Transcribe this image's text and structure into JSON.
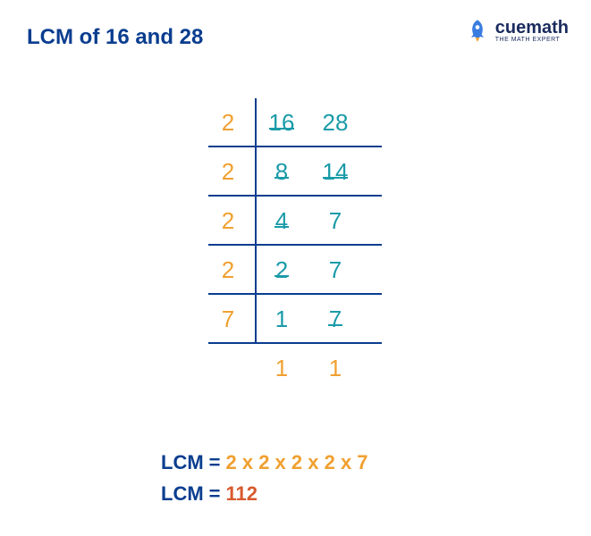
{
  "title": "LCM of 16 and 28",
  "title_color": "#0a3d8f",
  "logo": {
    "brand": "cuemath",
    "tagline": "THE MATH EXPERT",
    "rocket_color": "#3a7de0"
  },
  "colors": {
    "orange": "#f0a030",
    "teal": "#1a9ba8",
    "navy": "#0a3d8f",
    "red_orange": "#d85a2e",
    "line": "#0a3d8f"
  },
  "division": {
    "rows": [
      {
        "divisor": "2",
        "nums": [
          {
            "v": "16",
            "u": true
          },
          {
            "v": "28",
            "u": false
          }
        ],
        "hline": true,
        "divisor_color": "#f0a030",
        "num_color": "#1a9ba8"
      },
      {
        "divisor": "2",
        "nums": [
          {
            "v": "8",
            "u": true
          },
          {
            "v": "14",
            "u": true
          }
        ],
        "hline": true,
        "divisor_color": "#f0a030",
        "num_color": "#1a9ba8"
      },
      {
        "divisor": "2",
        "nums": [
          {
            "v": "4",
            "u": true
          },
          {
            "v": "7",
            "u": false
          }
        ],
        "hline": true,
        "divisor_color": "#f0a030",
        "num_color": "#1a9ba8"
      },
      {
        "divisor": "2",
        "nums": [
          {
            "v": "2",
            "u": true
          },
          {
            "v": "7",
            "u": false
          }
        ],
        "hline": true,
        "divisor_color": "#f0a030",
        "num_color": "#1a9ba8"
      },
      {
        "divisor": "7",
        "nums": [
          {
            "v": "1",
            "u": false
          },
          {
            "v": "7",
            "u": true
          }
        ],
        "hline": true,
        "divisor_color": "#f0a030",
        "num_color": "#1a9ba8"
      },
      {
        "divisor": "",
        "nums": [
          {
            "v": "1",
            "u": false
          },
          {
            "v": "1",
            "u": false
          }
        ],
        "hline": false,
        "divisor_color": "#f0a030",
        "num_color": "#f0a030"
      }
    ]
  },
  "result": {
    "label": "LCM",
    "factors": "2 x 2 x 2 x 2 x 7",
    "value": "112",
    "label_color": "#0a3d8f",
    "factor_color": "#f0a030",
    "value_color": "#d85a2e"
  }
}
